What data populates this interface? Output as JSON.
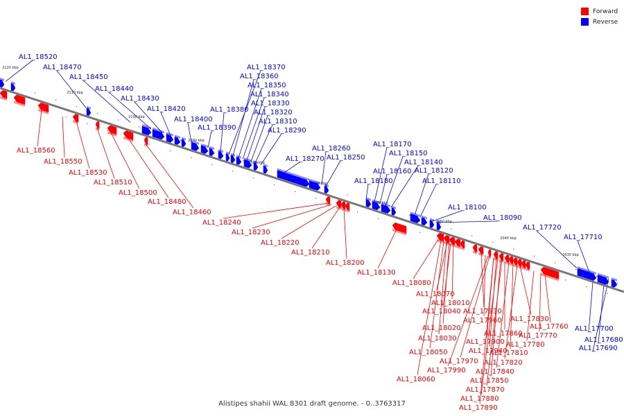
{
  "caption": "Alistipes shahii WAL 8301 draft genome. - 0..3763317",
  "legend": [
    {
      "label": "Forward",
      "color": "#ff0000"
    },
    {
      "label": "Reverse",
      "color": "#0000ff"
    }
  ],
  "colors": {
    "forward": "#ff0000",
    "reverse": "#0000ff",
    "backbone": "#777777"
  },
  "ticks": [
    "2120 kbp",
    "2110 kbp",
    "2100 kbp",
    "2090 kbp",
    "2080 kbp",
    "2070 kbp",
    "2060 kbp",
    "2050 kbp",
    "2040 kbp",
    "2030 kbp"
  ],
  "forward_labels": [
    "AL1_18560",
    "AL1_18550",
    "AL1_18530",
    "AL1_18510",
    "AL1_18500",
    "AL1_18480",
    "AL1_18460",
    "AL1_18240",
    "AL1_18230",
    "AL1_18220",
    "AL1_18210",
    "AL1_18200",
    "AL1_18130",
    "AL1_18080",
    "AL1_18070",
    "AL1_18010",
    "AL1_18040",
    "AL1_18020",
    "AL1_18030",
    "AL1_18050",
    "AL1_18060",
    "AL1_17930",
    "AL1_17960",
    "AL1_17900",
    "AL1_17940",
    "AL1_17970",
    "AL1_17990",
    "AL1_17830",
    "AL1_17860",
    "AL1_17810",
    "AL1_17820",
    "AL1_17840",
    "AL1_17850",
    "AL1_17870",
    "AL1_17880",
    "AL1_17890",
    "AL1_17760",
    "AL1_17770",
    "AL1_17780"
  ],
  "reverse_labels": [
    "AL1_18520",
    "AL1_18470",
    "AL1_18450",
    "AL1_18440",
    "AL1_18430",
    "AL1_18420",
    "AL1_18400",
    "AL1_18390",
    "AL1_18380",
    "AL1_18370",
    "AL1_18360",
    "AL1_18350",
    "AL1_18340",
    "AL1_18330",
    "AL1_18320",
    "AL1_18310",
    "AL1_18290",
    "AL1_18270",
    "AL1_18260",
    "AL1_18250",
    "AL1_18180",
    "AL1_18170",
    "AL1_18160",
    "AL1_18150",
    "AL1_18140",
    "AL1_18120",
    "AL1_18110",
    "AL1_18100",
    "AL1_18090",
    "AL1_17720",
    "AL1_17710",
    "AL1_17700",
    "AL1_17680",
    "AL1_17690"
  ]
}
